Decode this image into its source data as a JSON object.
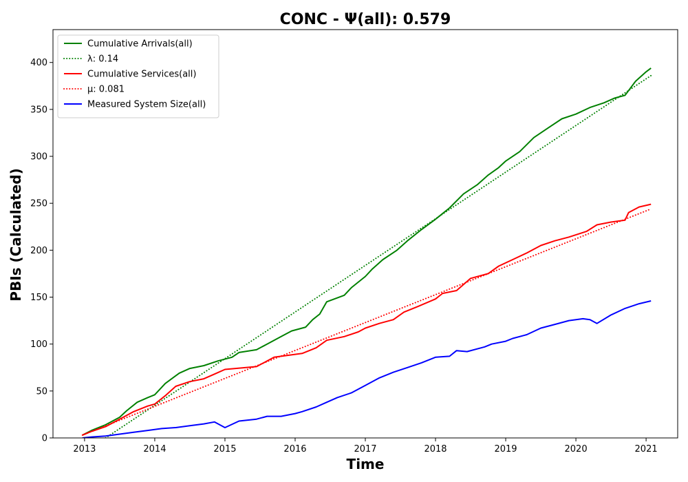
{
  "chart_data": {
    "type": "line",
    "title": "CONC -  Ψ(all): 0.579",
    "xlabel": "Time",
    "ylabel": "PBIs (Calculated)",
    "xlim": [
      2012.55,
      2021.45
    ],
    "ylim": [
      0,
      435
    ],
    "x_ticks": [
      2013,
      2014,
      2015,
      2016,
      2017,
      2018,
      2019,
      2020,
      2021
    ],
    "y_ticks": [
      0,
      50,
      100,
      150,
      200,
      250,
      300,
      350,
      400
    ],
    "legend_position": "upper left",
    "grid": false,
    "series": [
      {
        "name": "Cumulative Arrivals(all)",
        "color": "#008000",
        "style": "solid",
        "x": [
          2012.97,
          2013.1,
          2013.3,
          2013.5,
          2013.6,
          2013.75,
          2013.9,
          2014.0,
          2014.15,
          2014.35,
          2014.5,
          2014.7,
          2014.9,
          2015.1,
          2015.2,
          2015.45,
          2015.6,
          2015.8,
          2015.95,
          2016.15,
          2016.25,
          2016.35,
          2016.45,
          2016.7,
          2016.8,
          2017.0,
          2017.1,
          2017.25,
          2017.45,
          2017.6,
          2017.8,
          2018.0,
          2018.1,
          2018.2,
          2018.4,
          2018.6,
          2018.75,
          2018.9,
          2019.0,
          2019.2,
          2019.4,
          2019.6,
          2019.8,
          2020.0,
          2020.2,
          2020.4,
          2020.55,
          2020.7,
          2020.75,
          2020.85,
          2021.0,
          2021.07
        ],
        "y": [
          3,
          8,
          14,
          22,
          29,
          38,
          43,
          46,
          58,
          69,
          74,
          77,
          82,
          86,
          91,
          94,
          100,
          108,
          114,
          118,
          126,
          132,
          145,
          152,
          160,
          172,
          180,
          190,
          200,
          210,
          222,
          233,
          239,
          245,
          260,
          270,
          280,
          288,
          295,
          305,
          320,
          330,
          340,
          345,
          352,
          357,
          362,
          365,
          370,
          380,
          390,
          394
        ]
      },
      {
        "name": "λ: 0.14",
        "color": "#008000",
        "style": "dotted",
        "x": [
          2013.3,
          2021.07
        ],
        "y": [
          0,
          386
        ]
      },
      {
        "name": "Cumulative Services(all)",
        "color": "#ff0000",
        "style": "solid",
        "x": [
          2012.97,
          2013.1,
          2013.3,
          2013.5,
          2013.7,
          2013.9,
          2014.0,
          2014.15,
          2014.3,
          2014.5,
          2014.7,
          2014.85,
          2015.0,
          2015.3,
          2015.45,
          2015.7,
          2015.9,
          2016.1,
          2016.3,
          2016.45,
          2016.7,
          2016.9,
          2017.0,
          2017.2,
          2017.4,
          2017.55,
          2017.75,
          2018.0,
          2018.1,
          2018.3,
          2018.5,
          2018.75,
          2018.9,
          2019.1,
          2019.3,
          2019.5,
          2019.7,
          2019.9,
          2020.15,
          2020.3,
          2020.5,
          2020.7,
          2020.75,
          2020.9,
          2021.07
        ],
        "y": [
          3,
          7,
          12,
          20,
          28,
          34,
          36,
          45,
          55,
          60,
          63,
          68,
          73,
          75,
          76,
          86,
          88,
          90,
          96,
          104,
          108,
          113,
          117,
          122,
          126,
          134,
          140,
          148,
          154,
          157,
          170,
          175,
          183,
          190,
          197,
          205,
          210,
          214,
          220,
          227,
          230,
          232,
          240,
          246,
          249
        ]
      },
      {
        "name": "μ: 0.081",
        "color": "#ff0000",
        "style": "dotted",
        "x": [
          2012.97,
          2021.07
        ],
        "y": [
          3,
          244
        ]
      },
      {
        "name": "Measured System Size(all)",
        "color": "#0000ff",
        "style": "solid",
        "x": [
          2012.97,
          2013.1,
          2013.3,
          2013.5,
          2013.7,
          2013.9,
          2014.1,
          2014.3,
          2014.5,
          2014.7,
          2014.85,
          2015.0,
          2015.2,
          2015.45,
          2015.6,
          2015.8,
          2016.0,
          2016.1,
          2016.3,
          2016.45,
          2016.6,
          2016.8,
          2017.0,
          2017.2,
          2017.4,
          2017.6,
          2017.8,
          2018.0,
          2018.2,
          2018.3,
          2018.45,
          2018.7,
          2018.8,
          2019.0,
          2019.1,
          2019.3,
          2019.5,
          2019.7,
          2019.9,
          2020.1,
          2020.2,
          2020.3,
          2020.5,
          2020.7,
          2020.9,
          2021.07
        ],
        "y": [
          0,
          1,
          2,
          4,
          6,
          8,
          10,
          11,
          13,
          15,
          17,
          11,
          18,
          20,
          23,
          23,
          26,
          28,
          33,
          38,
          43,
          48,
          56,
          64,
          70,
          75,
          80,
          86,
          87,
          93,
          92,
          97,
          100,
          103,
          106,
          110,
          117,
          121,
          125,
          127,
          126,
          122,
          131,
          138,
          143,
          146
        ]
      }
    ]
  }
}
